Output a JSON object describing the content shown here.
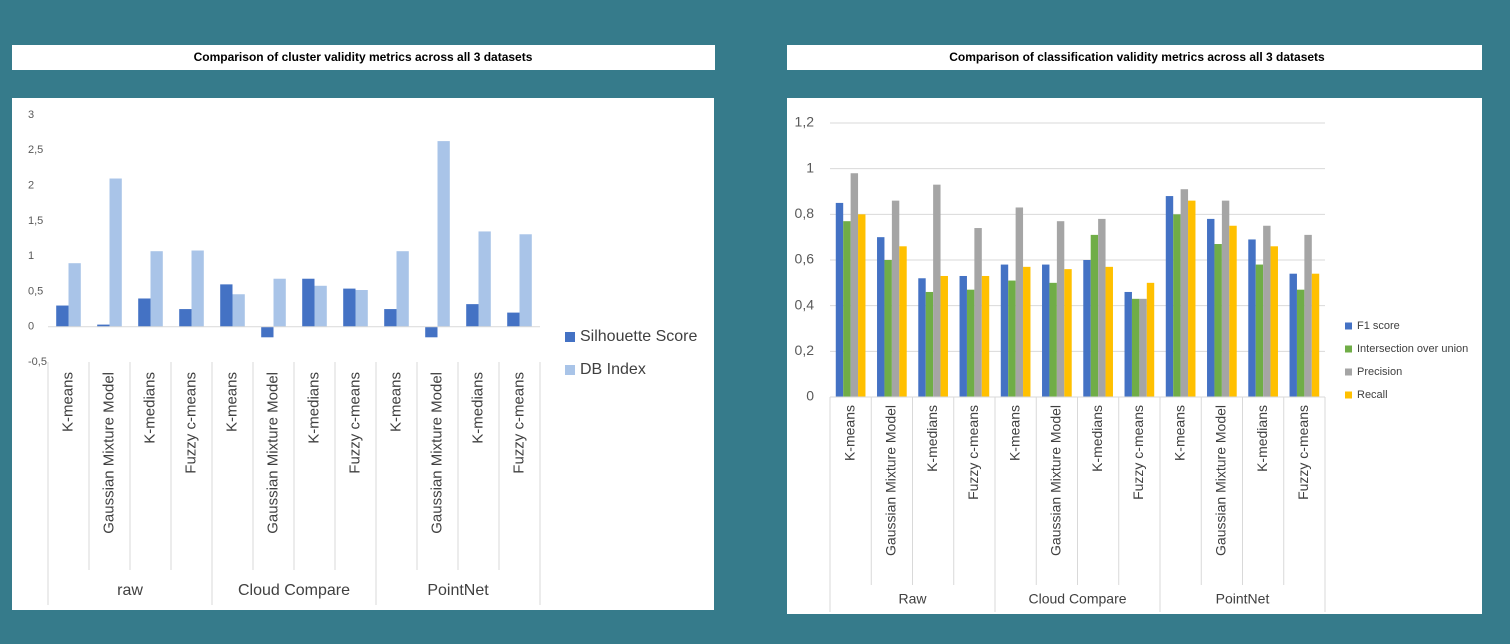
{
  "chart_data": [
    {
      "type": "bar",
      "title": "Comparison of cluster validity metrics across all 3 datasets",
      "categories": [
        "K-means",
        "Gaussian Mixture Model",
        "K-medians",
        "Fuzzy c-means",
        "K-means",
        "Gaussian Mixture Model",
        "K-medians",
        "Fuzzy c-means",
        "K-means",
        "Gaussian Mixture Model",
        "K-medians",
        "Fuzzy c-means"
      ],
      "groups": [
        "raw",
        "Cloud Compare",
        "PointNet"
      ],
      "series": [
        {
          "name": "Silhouette Score",
          "color": "#4472c4",
          "values": [
            0.3,
            0.03,
            0.4,
            0.25,
            0.6,
            -0.15,
            0.68,
            0.54,
            0.25,
            -0.15,
            0.32,
            0.2
          ]
        },
        {
          "name": "DB Index",
          "color": "#a9c4e8",
          "values": [
            0.9,
            2.1,
            1.07,
            1.08,
            0.46,
            0.68,
            0.58,
            0.52,
            1.07,
            2.63,
            1.35,
            1.31
          ]
        }
      ],
      "ylim": [
        -0.5,
        3
      ],
      "yticks": [
        {
          "value": -0.5,
          "label": "-0,5"
        },
        0,
        {
          "value": 0.5,
          "label": "0,5"
        },
        1,
        {
          "value": 1.5,
          "label": "1,5"
        },
        2,
        {
          "value": 2.5,
          "label": "2,5"
        },
        3
      ],
      "grid": false,
      "legend": "right"
    },
    {
      "type": "bar",
      "title": "Comparison of classification validity metrics across all 3 datasets",
      "categories": [
        "K-means",
        "Gaussian Mixture Model",
        "K-medians",
        "Fuzzy c-means",
        "K-means",
        "Gaussian Mixture Model",
        "K-medians",
        "Fuzzy c-means",
        "K-means",
        "Gaussian Mixture Model",
        "K-medians",
        "Fuzzy c-means"
      ],
      "groups": [
        "Raw",
        "Cloud Compare",
        "PointNet"
      ],
      "series": [
        {
          "name": "F1 score",
          "color": "#4472c4",
          "values": [
            0.85,
            0.7,
            0.52,
            0.53,
            0.58,
            0.58,
            0.6,
            0.46,
            0.88,
            0.78,
            0.69,
            0.54
          ]
        },
        {
          "name": "Intersection over union",
          "color": "#70ad47",
          "values": [
            0.77,
            0.6,
            0.46,
            0.47,
            0.51,
            0.5,
            0.71,
            0.43,
            0.8,
            0.67,
            0.58,
            0.47
          ]
        },
        {
          "name": "Precision",
          "color": "#a5a5a5",
          "values": [
            0.98,
            0.86,
            0.93,
            0.74,
            0.83,
            0.77,
            0.78,
            0.43,
            0.91,
            0.86,
            0.75,
            0.71
          ]
        },
        {
          "name": "Recall",
          "color": "#ffc000",
          "values": [
            0.8,
            0.66,
            0.53,
            0.53,
            0.57,
            0.56,
            0.57,
            0.5,
            0.86,
            0.75,
            0.66,
            0.54
          ]
        }
      ],
      "ylim": [
        0,
        1.2
      ],
      "yticks": [
        0,
        {
          "value": 0.2,
          "label": "0,2"
        },
        {
          "value": 0.4,
          "label": "0,4"
        },
        {
          "value": 0.6,
          "label": "0,6"
        },
        {
          "value": 0.8,
          "label": "0,8"
        },
        1,
        {
          "value": 1.2,
          "label": "1,2"
        }
      ],
      "grid": true,
      "legend": "right"
    }
  ]
}
